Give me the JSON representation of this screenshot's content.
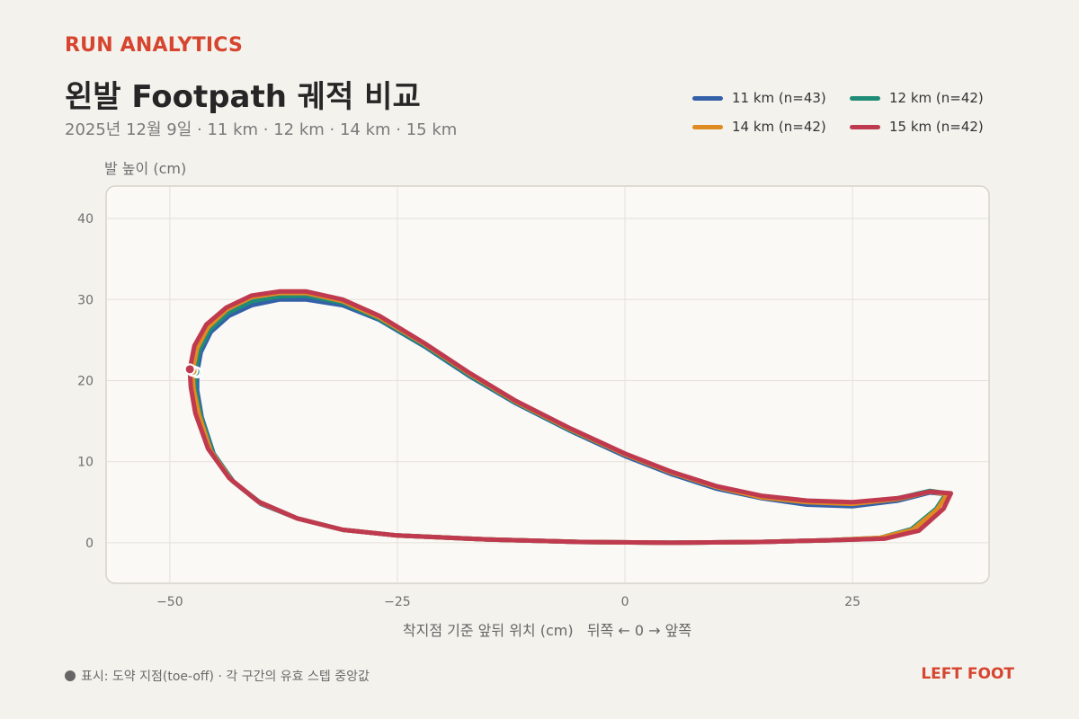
{
  "header": {
    "brand": "RUN ANALYTICS",
    "title": "왼발 Footpath 궤적 비교",
    "subtitle": "2025년 12월 9일 · 11 km · 12 km · 14 km · 15 km"
  },
  "footer": {
    "note": "표시: 도약 지점(toe-off) · 각 구간의 유효 스텝 중앙값",
    "foot": "LEFT FOOT"
  },
  "colors": {
    "11 km": "#3460a8",
    "12 km": "#1f8c78",
    "14 km": "#df8b22",
    "15 km": "#bf3a4f",
    "accent": "#d6452f"
  },
  "chart_data": {
    "type": "line",
    "title": "왼발 Footpath 궤적 비교",
    "xlabel": "착지점 기준 앞뒤 위치 (cm)   뒤쪽 ← 0 → 앞쪽",
    "ylabel": "발 높이 (cm)",
    "xlim": [
      -57,
      40
    ],
    "ylim": [
      -5,
      44
    ],
    "xticks": [
      -50,
      -25,
      0,
      25
    ],
    "xtick_labels": [
      "−50",
      "−25",
      "0",
      "25"
    ],
    "yticks": [
      0,
      10,
      20,
      30,
      40
    ],
    "ytick_labels": [
      "0",
      "10",
      "20",
      "30",
      "40"
    ],
    "grid": true,
    "legend_position": "top-right",
    "marker_note": "toe-off point",
    "series": [
      {
        "name": "11 km",
        "legend": "11 km  (n=43)",
        "color": "#3460a8",
        "points": [
          [
            -47.0,
            21.0
          ],
          [
            -46.6,
            23.5
          ],
          [
            -45.5,
            26.0
          ],
          [
            -43.5,
            28.0
          ],
          [
            -41.0,
            29.3
          ],
          [
            -38.0,
            30.0
          ],
          [
            -35.0,
            30.0
          ],
          [
            -31.0,
            29.3
          ],
          [
            -27.0,
            27.5
          ],
          [
            -22.0,
            24.2
          ],
          [
            -17.0,
            20.5
          ],
          [
            -12.0,
            17.2
          ],
          [
            -6.0,
            13.8
          ],
          [
            0.0,
            10.7
          ],
          [
            5.0,
            8.5
          ],
          [
            10.0,
            6.7
          ],
          [
            15.0,
            5.5
          ],
          [
            20.0,
            4.7
          ],
          [
            25.0,
            4.5
          ],
          [
            30.0,
            5.2
          ],
          [
            33.5,
            6.2
          ],
          [
            35.3,
            6.0
          ],
          [
            34.2,
            4.0
          ],
          [
            31.5,
            1.5
          ],
          [
            28.0,
            0.5
          ],
          [
            22.0,
            0.3
          ],
          [
            15.0,
            0.1
          ],
          [
            5.0,
            0.0
          ],
          [
            -5.0,
            0.1
          ],
          [
            -15.0,
            0.4
          ],
          [
            -25.0,
            0.9
          ],
          [
            -31.0,
            1.6
          ],
          [
            -36.0,
            3.0
          ],
          [
            -40.0,
            4.8
          ],
          [
            -43.0,
            7.5
          ],
          [
            -45.2,
            11.0
          ],
          [
            -46.5,
            15.5
          ],
          [
            -47.0,
            18.8
          ],
          [
            -47.0,
            21.0
          ]
        ]
      },
      {
        "name": "12 km",
        "legend": "12 km  (n=42)",
        "color": "#1f8c78",
        "points": [
          [
            -47.2,
            21.1
          ],
          [
            -46.8,
            23.7
          ],
          [
            -45.6,
            26.3
          ],
          [
            -43.6,
            28.4
          ],
          [
            -41.0,
            29.8
          ],
          [
            -38.0,
            30.4
          ],
          [
            -35.0,
            30.5
          ],
          [
            -31.0,
            29.6
          ],
          [
            -27.0,
            27.6
          ],
          [
            -22.0,
            24.3
          ],
          [
            -17.0,
            20.6
          ],
          [
            -12.0,
            17.3
          ],
          [
            -6.0,
            13.9
          ],
          [
            0.0,
            10.9
          ],
          [
            5.0,
            8.7
          ],
          [
            10.0,
            6.9
          ],
          [
            15.0,
            5.7
          ],
          [
            20.0,
            5.1
          ],
          [
            25.0,
            4.9
          ],
          [
            30.0,
            5.5
          ],
          [
            33.5,
            6.4
          ],
          [
            35.3,
            6.1
          ],
          [
            34.2,
            4.2
          ],
          [
            31.5,
            1.7
          ],
          [
            28.0,
            0.6
          ],
          [
            22.0,
            0.3
          ],
          [
            15.0,
            0.1
          ],
          [
            5.0,
            0.0
          ],
          [
            -5.0,
            0.1
          ],
          [
            -15.0,
            0.4
          ],
          [
            -25.0,
            0.9
          ],
          [
            -31.0,
            1.6
          ],
          [
            -36.0,
            3.0
          ],
          [
            -40.0,
            4.9
          ],
          [
            -43.1,
            7.6
          ],
          [
            -45.3,
            11.1
          ],
          [
            -46.6,
            15.6
          ],
          [
            -47.2,
            18.9
          ],
          [
            -47.2,
            21.1
          ]
        ]
      },
      {
        "name": "14 km",
        "legend": "14 km  (n=42)",
        "color": "#df8b22",
        "points": [
          [
            -47.5,
            21.2
          ],
          [
            -47.0,
            24.0
          ],
          [
            -45.8,
            26.6
          ],
          [
            -43.7,
            28.8
          ],
          [
            -41.0,
            30.3
          ],
          [
            -38.0,
            30.8
          ],
          [
            -35.0,
            30.8
          ],
          [
            -31.0,
            29.8
          ],
          [
            -27.0,
            27.8
          ],
          [
            -22.0,
            24.5
          ],
          [
            -17.0,
            20.8
          ],
          [
            -12.0,
            17.4
          ],
          [
            -6.0,
            14.0
          ],
          [
            0.0,
            10.9
          ],
          [
            5.0,
            8.7
          ],
          [
            10.0,
            6.9
          ],
          [
            15.0,
            5.6
          ],
          [
            20.0,
            5.0
          ],
          [
            25.0,
            4.8
          ],
          [
            30.0,
            5.4
          ],
          [
            33.5,
            6.3
          ],
          [
            35.4,
            6.0
          ],
          [
            34.3,
            4.1
          ],
          [
            31.6,
            1.6
          ],
          [
            28.0,
            0.6
          ],
          [
            22.0,
            0.3
          ],
          [
            15.0,
            0.1
          ],
          [
            5.0,
            0.0
          ],
          [
            -5.0,
            0.1
          ],
          [
            -15.0,
            0.4
          ],
          [
            -25.0,
            0.9
          ],
          [
            -31.0,
            1.6
          ],
          [
            -36.0,
            3.0
          ],
          [
            -40.2,
            5.0
          ],
          [
            -43.3,
            7.8
          ],
          [
            -45.5,
            11.3
          ],
          [
            -46.8,
            15.8
          ],
          [
            -47.4,
            19.0
          ],
          [
            -47.5,
            21.2
          ]
        ]
      },
      {
        "name": "15 km",
        "legend": "15 km  (n=42)",
        "color": "#bf3a4f",
        "points": [
          [
            -47.8,
            21.4
          ],
          [
            -47.3,
            24.3
          ],
          [
            -46.0,
            26.9
          ],
          [
            -43.8,
            29.0
          ],
          [
            -41.0,
            30.5
          ],
          [
            -38.0,
            31.0
          ],
          [
            -35.0,
            31.0
          ],
          [
            -31.0,
            30.0
          ],
          [
            -27.0,
            28.0
          ],
          [
            -22.0,
            24.6
          ],
          [
            -17.0,
            20.9
          ],
          [
            -12.0,
            17.5
          ],
          [
            -6.0,
            14.1
          ],
          [
            0.0,
            11.0
          ],
          [
            5.0,
            8.8
          ],
          [
            10.0,
            7.0
          ],
          [
            15.0,
            5.8
          ],
          [
            20.0,
            5.2
          ],
          [
            25.0,
            5.0
          ],
          [
            30.0,
            5.5
          ],
          [
            33.5,
            6.3
          ],
          [
            35.8,
            6.1
          ],
          [
            35.0,
            4.2
          ],
          [
            32.3,
            1.5
          ],
          [
            28.5,
            0.5
          ],
          [
            22.0,
            0.3
          ],
          [
            15.0,
            0.1
          ],
          [
            5.0,
            0.0
          ],
          [
            -5.0,
            0.1
          ],
          [
            -15.0,
            0.4
          ],
          [
            -25.0,
            0.9
          ],
          [
            -31.0,
            1.6
          ],
          [
            -36.0,
            3.0
          ],
          [
            -40.3,
            5.1
          ],
          [
            -43.5,
            8.0
          ],
          [
            -45.8,
            11.6
          ],
          [
            -47.2,
            16.0
          ],
          [
            -47.7,
            19.2
          ],
          [
            -47.8,
            21.4
          ]
        ]
      }
    ],
    "markers": [
      {
        "series": "11 km",
        "x": -47.0,
        "y": 21.0
      },
      {
        "series": "12 km",
        "x": -47.2,
        "y": 21.1
      },
      {
        "series": "14 km",
        "x": -47.5,
        "y": 21.2
      },
      {
        "series": "15 km",
        "x": -47.8,
        "y": 21.4
      }
    ]
  }
}
